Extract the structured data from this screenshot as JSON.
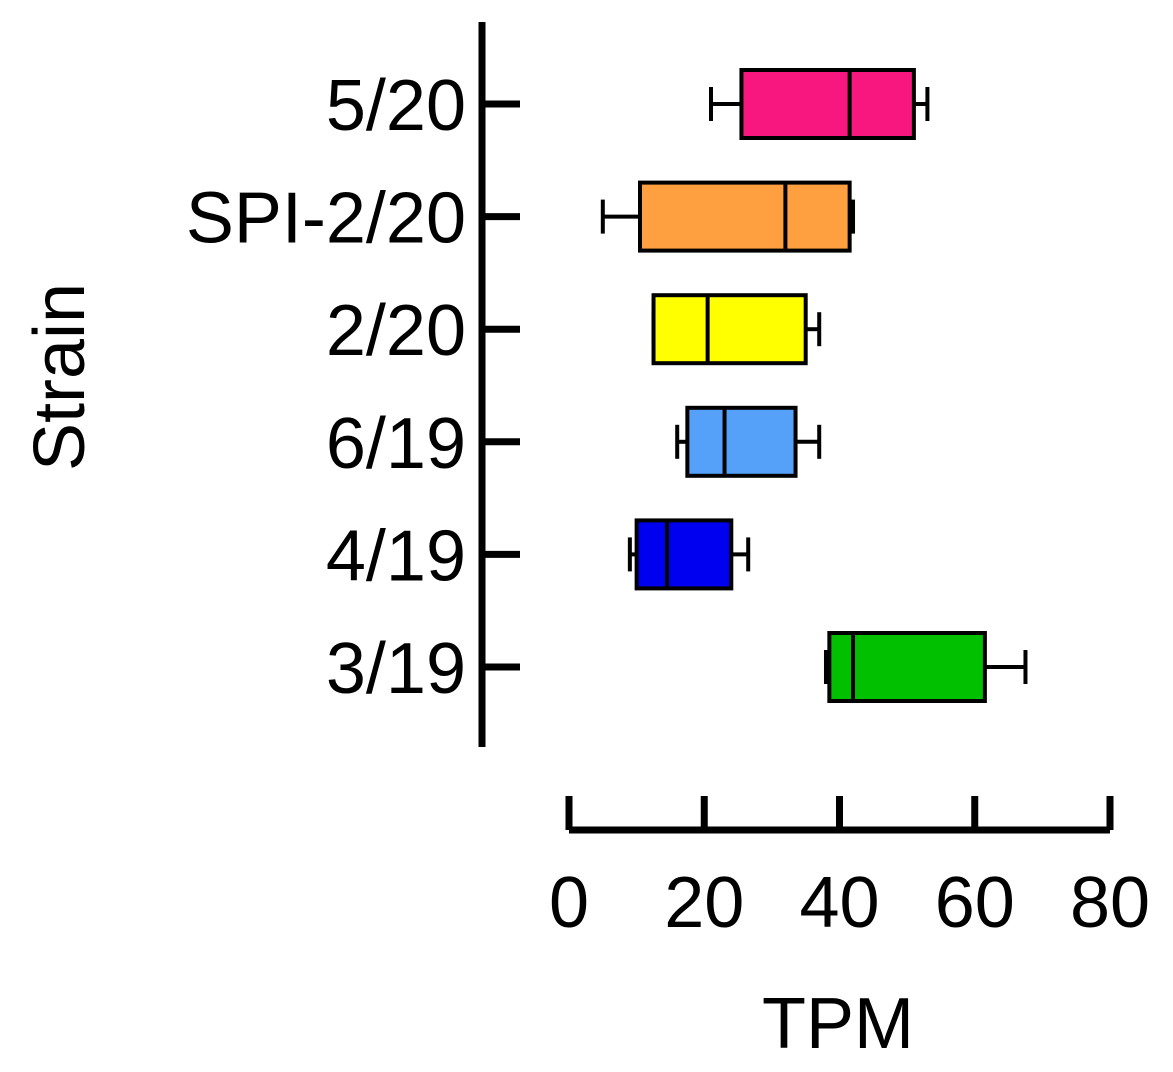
{
  "chart_data": {
    "type": "box",
    "orientation": "horizontal",
    "xlabel": "TPM",
    "ylabel": "Strain",
    "xlim": [
      0,
      80
    ],
    "xticks": [
      "0",
      "20",
      "40",
      "60",
      "80"
    ],
    "grid": false,
    "legend": "none",
    "categories": [
      "5/20",
      "SPI-2/20",
      "2/20",
      "6/19",
      "4/19",
      "3/19"
    ],
    "boxes": [
      {
        "category": "5/20",
        "min": 21,
        "q1": 25.5,
        "median": 41.5,
        "q3": 51,
        "max": 53,
        "color": "#f7177e"
      },
      {
        "category": "SPI-2/20",
        "min": 5,
        "q1": 10.5,
        "median": 32,
        "q3": 41.5,
        "max": 42,
        "color": "#ffa040"
      },
      {
        "category": "2/20",
        "min": 12.5,
        "q1": 12.5,
        "median": 20.5,
        "q3": 35,
        "max": 37,
        "color": "#ffff00"
      },
      {
        "category": "6/19",
        "min": 16,
        "q1": 17.5,
        "median": 23,
        "q3": 33.5,
        "max": 37,
        "color": "#55a0f8"
      },
      {
        "category": "4/19",
        "min": 9,
        "q1": 10,
        "median": 14.5,
        "q3": 24,
        "max": 26.5,
        "color": "#0000f0"
      },
      {
        "category": "3/19",
        "min": 38,
        "q1": 38.5,
        "median": 42,
        "q3": 61.5,
        "max": 67.5,
        "color": "#00c000"
      }
    ]
  }
}
